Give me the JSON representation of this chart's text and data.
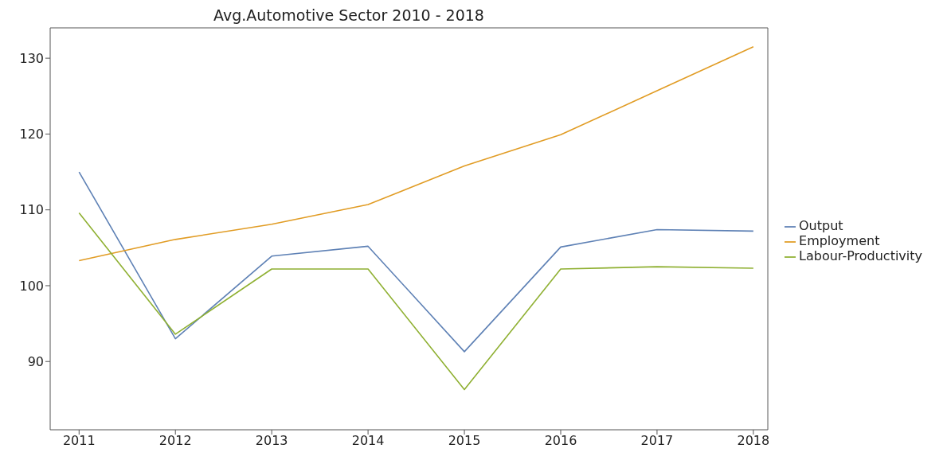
{
  "chart_data": {
    "type": "line",
    "title": "Avg.Automotive Sector 2010 - 2018",
    "x": [
      2011,
      2012,
      2013,
      2014,
      2015,
      2016,
      2017,
      2018
    ],
    "series": [
      {
        "name": "Output",
        "color": "#5e81b5",
        "values": [
          115.0,
          93.0,
          103.9,
          105.2,
          91.3,
          105.1,
          107.4,
          107.2
        ]
      },
      {
        "name": "Employment",
        "color": "#e19c24",
        "values": [
          103.3,
          106.1,
          108.1,
          110.7,
          115.8,
          119.9,
          125.7,
          131.5
        ]
      },
      {
        "name": "Labour-Productivity",
        "color": "#8fb032",
        "values": [
          109.6,
          93.6,
          102.2,
          102.2,
          86.3,
          102.2,
          102.5,
          102.3
        ]
      }
    ],
    "xlim": [
      2010.7,
      2018.15
    ],
    "xticks": [
      2011,
      2012,
      2013,
      2014,
      2015,
      2016,
      2017,
      2018
    ],
    "ylim": [
      81,
      134
    ],
    "yticks": [
      90,
      100,
      110,
      120,
      130
    ],
    "grid": false,
    "legend": "right",
    "marker": "none",
    "line_style": "solid"
  }
}
